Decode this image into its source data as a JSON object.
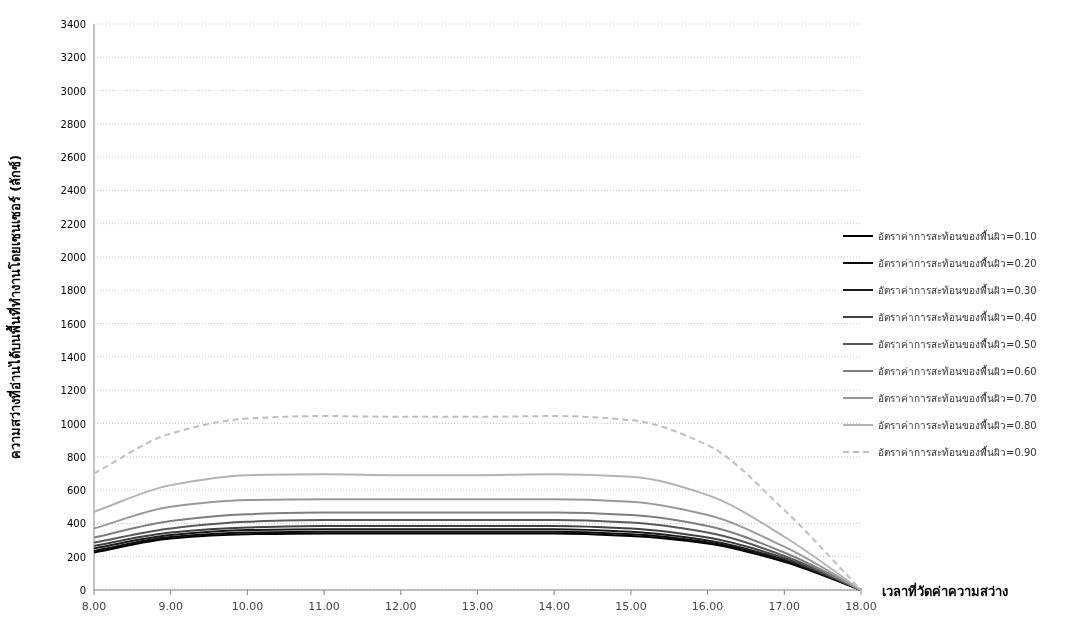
{
  "chart_data": {
    "type": "line",
    "ylabel": "ความสว่างที่อ่านได้บนพื้นที่ทำงานโดยเซนเซอร์ (ลักซ์)",
    "xlabel": "เวลาที่วัดค่าความสว่าง",
    "x": [
      8,
      9,
      10,
      11,
      12,
      13,
      14,
      15,
      16,
      17,
      18
    ],
    "xlim": [
      8,
      18
    ],
    "xticks": [
      {
        "value": 8,
        "label": "8.00"
      },
      {
        "value": 9,
        "label": "9.00"
      },
      {
        "value": 10,
        "label": "10.00"
      },
      {
        "value": 11,
        "label": "11.00"
      },
      {
        "value": 12,
        "label": "12.00"
      },
      {
        "value": 13,
        "label": "13.00"
      },
      {
        "value": 14,
        "label": "14.00"
      },
      {
        "value": 15,
        "label": "15.00"
      },
      {
        "value": 16,
        "label": "16.00"
      },
      {
        "value": 17,
        "label": "17.00"
      },
      {
        "value": 18,
        "label": "18.00"
      }
    ],
    "ylim": [
      0,
      3400
    ],
    "yticks": [
      0,
      200,
      400,
      600,
      800,
      1000,
      1200,
      1400,
      1600,
      1800,
      2000,
      2200,
      2400,
      2600,
      2800,
      3000,
      3200,
      3400
    ],
    "grid": "y",
    "legend": "right",
    "marker": "none",
    "series": [
      {
        "name": "อัตราค่าการสะท้อนของพื้นผิว=0.10",
        "color": "#000000",
        "values": [
          225,
          310,
          335,
          340,
          340,
          340,
          340,
          325,
          280,
          170,
          0
        ]
      },
      {
        "name": "อัตราค่าการสะท้อนของพื้นผิว=0.20",
        "color": "#0d0d0d",
        "values": [
          235,
          318,
          345,
          350,
          350,
          350,
          350,
          335,
          287,
          175,
          0
        ]
      },
      {
        "name": "อัตราค่าการสะท้อนของพื้นผิว=0.30",
        "color": "#1a1a1a",
        "values": [
          250,
          330,
          360,
          365,
          365,
          365,
          365,
          350,
          298,
          182,
          0
        ]
      },
      {
        "name": "อัตราค่าการสะท้อนของพื้นผิว=0.40",
        "color": "#404040",
        "values": [
          265,
          345,
          375,
          385,
          385,
          385,
          385,
          370,
          315,
          192,
          0
        ]
      },
      {
        "name": "อัตราค่าการสะท้อนของพื้นผิว=0.50",
        "color": "#595959",
        "values": [
          285,
          370,
          410,
          420,
          420,
          420,
          420,
          405,
          345,
          205,
          0
        ]
      },
      {
        "name": "อัตราค่าการสะท้อนของพื้นผิว=0.60",
        "color": "#7f7f7f",
        "values": [
          315,
          415,
          455,
          465,
          465,
          465,
          465,
          450,
          385,
          225,
          0
        ]
      },
      {
        "name": "อัตราค่าการสะท้อนของพื้นผิว=0.70",
        "color": "#999999",
        "values": [
          370,
          500,
          540,
          545,
          545,
          545,
          545,
          530,
          450,
          260,
          0
        ]
      },
      {
        "name": "อัตราค่าการสะท้อนของพื้นผิว=0.80",
        "color": "#b3b3b3",
        "values": [
          470,
          630,
          690,
          695,
          690,
          690,
          695,
          680,
          570,
          320,
          0
        ]
      },
      {
        "name": "อัตราค่าการสะท้อนของพื้นผิว=0.90",
        "color": "#bfbfbf",
        "line_style": "dashed",
        "values": [
          700,
          940,
          1030,
          1045,
          1040,
          1040,
          1045,
          1020,
          870,
          480,
          0
        ]
      }
    ]
  }
}
